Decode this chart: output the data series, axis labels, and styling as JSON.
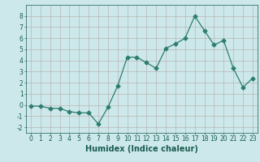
{
  "x": [
    0,
    1,
    2,
    3,
    4,
    5,
    6,
    7,
    8,
    9,
    10,
    11,
    12,
    13,
    14,
    15,
    16,
    17,
    18,
    19,
    20,
    21,
    22,
    23
  ],
  "y": [
    -0.1,
    -0.1,
    -0.3,
    -0.3,
    -0.6,
    -0.7,
    -0.7,
    -1.7,
    -0.2,
    1.7,
    4.3,
    4.3,
    3.8,
    3.3,
    5.1,
    5.5,
    6.0,
    8.0,
    6.7,
    5.4,
    5.8,
    3.3,
    1.6,
    2.4
  ],
  "line_color": "#2e7d6e",
  "marker": "D",
  "marker_size": 2.5,
  "bg_color": "#cce8ea",
  "grid_color": "#b8a8a8",
  "xlabel": "Humidex (Indice chaleur)",
  "xlim": [
    -0.5,
    23.5
  ],
  "ylim": [
    -2.5,
    9.0
  ],
  "yticks": [
    -2,
    -1,
    0,
    1,
    2,
    3,
    4,
    5,
    6,
    7,
    8
  ],
  "xticks": [
    0,
    1,
    2,
    3,
    4,
    5,
    6,
    7,
    8,
    9,
    10,
    11,
    12,
    13,
    14,
    15,
    16,
    17,
    18,
    19,
    20,
    21,
    22,
    23
  ],
  "tick_fontsize": 5.5,
  "xlabel_fontsize": 7,
  "label_color": "#1a5c50"
}
